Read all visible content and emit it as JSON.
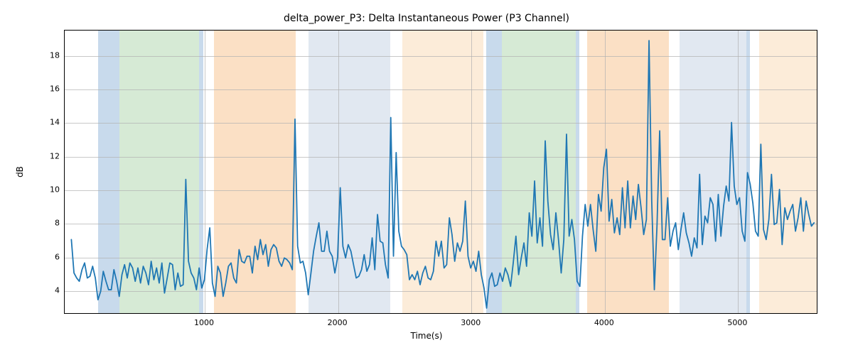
{
  "chart": {
    "type": "line",
    "title": "delta_power_P3: Delta Instantaneous Power (P3 Channel)",
    "title_fontsize": 14,
    "xlabel": "Time(s)",
    "ylabel": "dB",
    "label_fontsize": 12,
    "tick_fontsize": 11,
    "background_color": "#ffffff",
    "axes_edge_color": "#000000",
    "grid_color": "#b0b0b0",
    "grid_alpha": 0.7,
    "xlim": [
      -50,
      5600
    ],
    "ylim": [
      2.6,
      19.5
    ],
    "xticks": [
      1000,
      2000,
      3000,
      4000,
      5000
    ],
    "yticks": [
      4,
      6,
      8,
      10,
      12,
      14,
      16,
      18
    ],
    "line_color": "#1f77b4",
    "line_width": 1.8,
    "bands": [
      {
        "start": 200,
        "end": 360,
        "color": "#c8daec"
      },
      {
        "start": 360,
        "end": 960,
        "color": "#d6ead5"
      },
      {
        "start": 960,
        "end": 990,
        "color": "#c8daec"
      },
      {
        "start": 1070,
        "end": 1680,
        "color": "#fbe0c5"
      },
      {
        "start": 1780,
        "end": 2390,
        "color": "#e1e8f1"
      },
      {
        "start": 2480,
        "end": 3090,
        "color": "#fcecd9"
      },
      {
        "start": 3110,
        "end": 3230,
        "color": "#c8daec"
      },
      {
        "start": 3230,
        "end": 3780,
        "color": "#d6ead5"
      },
      {
        "start": 3780,
        "end": 3810,
        "color": "#c8daec"
      },
      {
        "start": 3870,
        "end": 4480,
        "color": "#fbe0c5"
      },
      {
        "start": 4560,
        "end": 5060,
        "color": "#e1e8f1"
      },
      {
        "start": 5060,
        "end": 5090,
        "color": "#c8daec"
      },
      {
        "start": 5160,
        "end": 5600,
        "color": "#fcecd9"
      }
    ],
    "series_x_step": 20,
    "series_y": [
      7.0,
      5.0,
      4.7,
      4.5,
      5.2,
      5.6,
      4.7,
      4.8,
      5.4,
      4.7,
      3.4,
      3.9,
      5.1,
      4.5,
      4.0,
      4.0,
      5.2,
      4.5,
      3.6,
      4.9,
      5.5,
      4.7,
      5.6,
      5.3,
      4.5,
      5.3,
      4.4,
      5.4,
      5.0,
      4.3,
      5.7,
      4.6,
      5.3,
      4.4,
      5.6,
      3.8,
      4.7,
      5.6,
      5.5,
      4.0,
      5.0,
      4.2,
      4.3,
      10.6,
      5.7,
      5.0,
      4.7,
      4.0,
      5.3,
      4.1,
      4.6,
      6.4,
      7.7,
      4.4,
      3.6,
      5.4,
      5.0,
      3.6,
      4.4,
      5.4,
      5.6,
      4.7,
      4.4,
      6.4,
      5.7,
      5.6,
      6.0,
      6.0,
      5.0,
      6.6,
      5.8,
      7.0,
      6.1,
      6.7,
      5.4,
      6.4,
      6.7,
      6.5,
      5.7,
      5.4,
      5.9,
      5.8,
      5.6,
      5.2,
      14.2,
      6.6,
      5.6,
      5.7,
      5.0,
      3.7,
      5.0,
      6.3,
      7.2,
      8.0,
      6.3,
      6.3,
      7.5,
      6.3,
      6.0,
      5.0,
      5.9,
      10.1,
      6.6,
      5.9,
      6.7,
      6.3,
      5.5,
      4.7,
      4.8,
      5.2,
      6.1,
      5.1,
      5.5,
      7.1,
      5.2,
      8.5,
      6.9,
      6.8,
      5.5,
      4.7,
      14.3,
      6.0,
      12.2,
      7.5,
      6.6,
      6.4,
      6.1,
      4.6,
      4.9,
      4.6,
      5.1,
      4.3,
      5.0,
      5.4,
      4.7,
      4.6,
      5.1,
      6.9,
      6.0,
      6.9,
      5.3,
      5.5,
      8.3,
      7.3,
      5.7,
      6.8,
      6.3,
      6.9,
      9.3,
      6.0,
      5.3,
      5.7,
      5.1,
      6.3,
      4.9,
      4.1,
      2.9,
      4.6,
      5.0,
      4.2,
      4.3,
      5.0,
      4.5,
      5.3,
      4.9,
      4.2,
      5.6,
      7.2,
      4.9,
      5.9,
      6.8,
      5.4,
      8.6,
      7.2,
      10.5,
      6.8,
      8.3,
      6.6,
      12.9,
      9.3,
      7.3,
      6.4,
      8.6,
      7.0,
      5.0,
      7.0,
      13.3,
      7.2,
      8.2,
      7.0,
      4.5,
      4.2,
      7.2,
      9.1,
      7.8,
      9.1,
      7.6,
      6.3,
      9.7,
      8.7,
      11.3,
      12.4,
      8.1,
      9.4,
      7.4,
      8.3,
      7.3,
      10.1,
      7.7,
      10.5,
      7.7,
      9.6,
      8.2,
      10.3,
      8.9,
      7.3,
      8.2,
      18.9,
      9.3,
      4.0,
      7.9,
      13.5,
      7.0,
      7.0,
      9.5,
      6.6,
      7.5,
      8.0,
      6.4,
      7.6,
      8.6,
      7.4,
      6.8,
      6.0,
      7.1,
      6.5,
      10.9,
      6.7,
      8.4,
      8.0,
      9.5,
      9.1,
      6.9,
      9.7,
      7.2,
      9.0,
      10.2,
      9.3,
      14.0,
      10.2,
      9.1,
      9.5,
      7.5,
      6.9,
      11.0,
      10.3,
      9.2,
      7.5,
      7.2,
      12.7,
      7.6,
      7.0,
      8.2,
      10.9,
      7.9,
      8.0,
      10.0,
      6.7,
      8.9,
      8.2,
      8.7,
      9.1,
      7.5,
      8.3,
      9.5,
      7.5,
      9.3,
      8.5,
      7.8,
      8.0
    ]
  }
}
